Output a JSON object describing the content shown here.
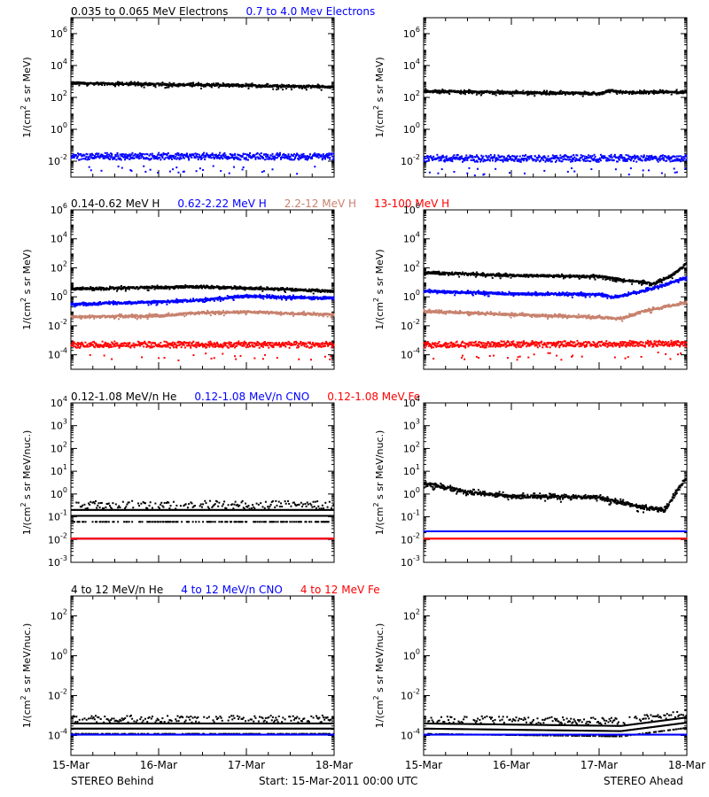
{
  "colors": {
    "black": "#000000",
    "blue": "#0000ff",
    "tan": "#c8826e",
    "red": "#ff0000"
  },
  "x_ticks": [
    "15-Mar",
    "16-Mar",
    "17-Mar",
    "18-Mar"
  ],
  "footer": {
    "left": "STEREO Behind",
    "center": "Start: 15-Mar-2011 00:00 UTC",
    "right": "STEREO Ahead"
  },
  "chart_data": [
    {
      "type": "scatter",
      "row_titles": [
        {
          "text": "0.035 to 0.065 MeV Electrons",
          "color": "black"
        },
        {
          "text": "0.7 to 4.0 Mev Electrons",
          "color": "blue"
        }
      ],
      "ylabel_base": "1/(cm",
      "ylabel_sup": "2",
      "ylabel_rest": " s sr MeV)",
      "yscale": "log",
      "ylim_exp": [
        -3,
        7
      ],
      "yticks_exp": [
        -2,
        0,
        2,
        4,
        6
      ],
      "panels": [
        {
          "name": "STEREO Behind",
          "series": [
            {
              "name": "0.035 to 0.065 MeV Electrons",
              "color": "black",
              "style": "band",
              "x": [
                "2011-03-15",
                "2011-03-16",
                "2011-03-16 12:00",
                "2011-03-17",
                "2011-03-18"
              ],
              "y": [
                800,
                650,
                600,
                550,
                450
              ]
            },
            {
              "name": "0.7 to 4.0 Mev Electrons",
              "color": "blue",
              "style": "noisy",
              "x": [
                "2011-03-15",
                "2011-03-18"
              ],
              "y": [
                0.02,
                0.02
              ]
            }
          ]
        },
        {
          "name": "STEREO Ahead",
          "series": [
            {
              "name": "0.035 to 0.065 MeV Electrons",
              "color": "black",
              "style": "band",
              "x": [
                "2011-03-15",
                "2011-03-16",
                "2011-03-16 18:00",
                "2011-03-17",
                "2011-03-17 03:00",
                "2011-03-17 08:00",
                "2011-03-18"
              ],
              "y": [
                250,
                200,
                180,
                170,
                260,
                200,
                220
              ]
            },
            {
              "name": "0.7 to 4.0 Mev Electrons",
              "color": "blue",
              "style": "noisy",
              "x": [
                "2011-03-15",
                "2011-03-18"
              ],
              "y": [
                0.015,
                0.015
              ]
            }
          ]
        }
      ]
    },
    {
      "type": "scatter",
      "row_titles": [
        {
          "text": "0.14-0.62 MeV H",
          "color": "black"
        },
        {
          "text": "0.62-2.22 MeV H",
          "color": "blue"
        },
        {
          "text": "2.2-12 MeV H",
          "color": "tan"
        },
        {
          "text": "13-100 MeV H",
          "color": "red"
        }
      ],
      "ylabel_base": "1/(cm",
      "ylabel_sup": "2",
      "ylabel_rest": " s sr MeV)",
      "yscale": "log",
      "ylim_exp": [
        -5,
        6
      ],
      "yticks_exp": [
        -4,
        -2,
        0,
        2,
        4,
        6
      ],
      "panels": [
        {
          "name": "STEREO Behind",
          "series": [
            {
              "name": "0.14-0.62 MeV H",
              "color": "black",
              "style": "band",
              "x": [
                "2011-03-15",
                "2011-03-16",
                "2011-03-16 12:00",
                "2011-03-17",
                "2011-03-18"
              ],
              "y": [
                3.5,
                4.5,
                5,
                4,
                2.5
              ]
            },
            {
              "name": "0.62-2.22 MeV H",
              "color": "blue",
              "style": "band",
              "x": [
                "2011-03-15",
                "2011-03-16",
                "2011-03-16 12:00",
                "2011-03-17",
                "2011-03-18"
              ],
              "y": [
                0.3,
                0.45,
                0.6,
                1.1,
                0.8
              ]
            },
            {
              "name": "2.2-12 MeV H",
              "color": "tan",
              "style": "band",
              "x": [
                "2011-03-15",
                "2011-03-16",
                "2011-03-16 12:00",
                "2011-03-17",
                "2011-03-18"
              ],
              "y": [
                0.04,
                0.05,
                0.08,
                0.09,
                0.06
              ]
            },
            {
              "name": "13-100 MeV H",
              "color": "red",
              "style": "noisy",
              "x": [
                "2011-03-15",
                "2011-03-18"
              ],
              "y": [
                0.0005,
                0.0005
              ]
            }
          ]
        },
        {
          "name": "STEREO Ahead",
          "series": [
            {
              "name": "0.14-0.62 MeV H",
              "color": "black",
              "style": "band",
              "x": [
                "2011-03-15",
                "2011-03-16",
                "2011-03-17",
                "2011-03-17 06:00",
                "2011-03-17 15:00",
                "2011-03-17 20:00",
                "2011-03-18"
              ],
              "y": [
                45,
                30,
                25,
                15,
                8,
                30,
                200
              ]
            },
            {
              "name": "0.62-2.22 MeV H",
              "color": "blue",
              "style": "band",
              "x": [
                "2011-03-15",
                "2011-03-16",
                "2011-03-17",
                "2011-03-17 04:00",
                "2011-03-17 12:00",
                "2011-03-18"
              ],
              "y": [
                2.5,
                1.6,
                1.5,
                0.9,
                2.5,
                20
              ]
            },
            {
              "name": "2.2-12 MeV H",
              "color": "tan",
              "style": "band",
              "x": [
                "2011-03-15",
                "2011-03-16",
                "2011-03-17",
                "2011-03-17 06:00",
                "2011-03-17 12:00",
                "2011-03-18"
              ],
              "y": [
                0.1,
                0.06,
                0.04,
                0.03,
                0.1,
                0.4
              ]
            },
            {
              "name": "13-100 MeV H",
              "color": "red",
              "style": "noisy",
              "x": [
                "2011-03-15",
                "2011-03-18"
              ],
              "y": [
                0.0005,
                0.0006
              ]
            }
          ]
        }
      ]
    },
    {
      "type": "scatter",
      "row_titles": [
        {
          "text": "0.12-1.08 MeV/n He",
          "color": "black"
        },
        {
          "text": "0.12-1.08 MeV/n CNO",
          "color": "blue"
        },
        {
          "text": "0.12-1.08 MeV Fe",
          "color": "red"
        }
      ],
      "ylabel_base": "1/(cm",
      "ylabel_sup": "2",
      "ylabel_rest": " s sr MeV/nuc.)",
      "yscale": "log",
      "ylim_exp": [
        -3,
        4
      ],
      "yticks_exp": [
        -3,
        -2,
        -1,
        0,
        1,
        2,
        3,
        4
      ],
      "panels": [
        {
          "name": "STEREO Behind",
          "series": [
            {
              "name": "0.12-1.08 MeV/n He",
              "color": "black",
              "style": "levels",
              "x": [
                "2011-03-15",
                "2011-03-18"
              ],
              "y": [
                0.2,
                0.2
              ]
            },
            {
              "name": "0.12-1.08 MeV/n CNO",
              "color": "blue",
              "style": "flat",
              "x": [
                "2011-03-15",
                "2011-03-18"
              ],
              "y": [
                0.011,
                0.011
              ]
            },
            {
              "name": "0.12-1.08 MeV Fe",
              "color": "red",
              "style": "flat",
              "x": [
                "2011-03-15",
                "2011-03-18"
              ],
              "y": [
                0.011,
                0.011
              ]
            }
          ]
        },
        {
          "name": "STEREO Ahead",
          "series": [
            {
              "name": "0.12-1.08 MeV/n He",
              "color": "black",
              "style": "band",
              "x": [
                "2011-03-15",
                "2011-03-15 12:00",
                "2011-03-16",
                "2011-03-17",
                "2011-03-17 12:00",
                "2011-03-17 18:00",
                "2011-03-18"
              ],
              "y": [
                3,
                1.2,
                0.8,
                0.7,
                0.25,
                0.2,
                6
              ]
            },
            {
              "name": "0.12-1.08 MeV/n CNO",
              "color": "blue",
              "style": "flat",
              "x": [
                "2011-03-15",
                "2011-03-18"
              ],
              "y": [
                0.023,
                0.023
              ]
            },
            {
              "name": "0.12-1.08 MeV Fe",
              "color": "red",
              "style": "flat",
              "x": [
                "2011-03-15",
                "2011-03-18"
              ],
              "y": [
                0.011,
                0.011
              ]
            }
          ]
        }
      ]
    },
    {
      "type": "scatter",
      "row_titles": [
        {
          "text": "4 to 12 MeV/n He",
          "color": "black"
        },
        {
          "text": "4 to 12 MeV/n CNO",
          "color": "blue"
        },
        {
          "text": "4 to 12 MeV Fe",
          "color": "red"
        }
      ],
      "ylabel_base": "1/(cm",
      "ylabel_sup": "2",
      "ylabel_rest": " s sr MeV/nuc.)",
      "yscale": "log",
      "ylim_exp": [
        -5,
        3
      ],
      "yticks_exp": [
        -4,
        -2,
        0,
        2
      ],
      "panels": [
        {
          "name": "STEREO Behind",
          "series": [
            {
              "name": "4 to 12 MeV/n He",
              "color": "black",
              "style": "levels",
              "x": [
                "2011-03-15",
                "2011-03-18"
              ],
              "y": [
                0.0004,
                0.0004
              ]
            },
            {
              "name": "4 to 12 MeV/n CNO",
              "color": "blue",
              "style": "flat",
              "x": [
                "2011-03-15",
                "2011-03-18"
              ],
              "y": [
                0.00011,
                0.00011
              ]
            }
          ]
        },
        {
          "name": "STEREO Ahead",
          "series": [
            {
              "name": "4 to 12 MeV/n He",
              "color": "black",
              "style": "levels",
              "x": [
                "2011-03-15",
                "2011-03-17 06:00",
                "2011-03-18"
              ],
              "y": [
                0.0004,
                0.0003,
                0.0008
              ]
            },
            {
              "name": "4 to 12 MeV/n CNO",
              "color": "blue",
              "style": "flat",
              "x": [
                "2011-03-15",
                "2011-03-18"
              ],
              "y": [
                0.00011,
                0.00011
              ]
            }
          ]
        }
      ]
    }
  ]
}
